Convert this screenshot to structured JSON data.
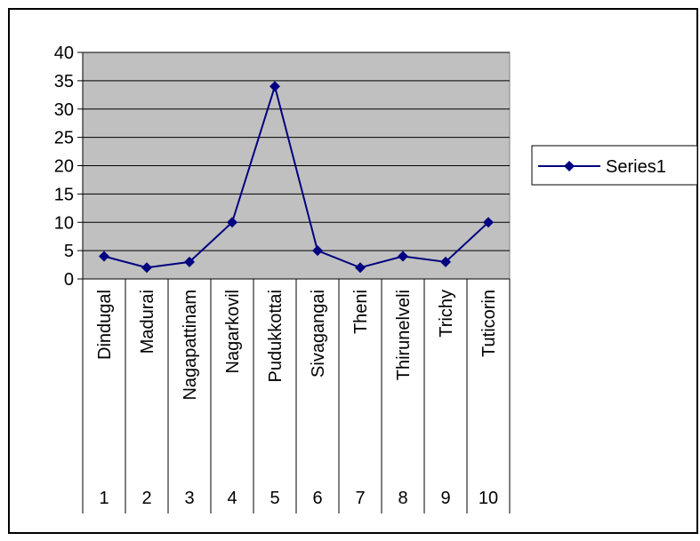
{
  "chart_data": {
    "type": "line",
    "categories": [
      "Dindugal",
      "Madurai",
      "Nagapattinam",
      "Nagarkovil",
      "Pudukkottai",
      "Sivagangai",
      "Theni",
      "Thirunelveli",
      "Trichy",
      "Tuticorin"
    ],
    "category_numbers": [
      "1",
      "2",
      "3",
      "4",
      "5",
      "6",
      "7",
      "8",
      "9",
      "10"
    ],
    "series": [
      {
        "name": "Series1",
        "values": [
          4,
          2,
          3,
          10,
          34,
          5,
          2,
          4,
          3,
          10
        ]
      }
    ],
    "yticks": [
      "0",
      "5",
      "10",
      "15",
      "20",
      "25",
      "30",
      "35",
      "40"
    ],
    "ylim": [
      0,
      40
    ],
    "grid": true,
    "legend": "right",
    "title": "",
    "xlabel": "",
    "ylabel": "",
    "colors": {
      "series": "#000080",
      "plot_bg": "#c0c0c0",
      "grid": "#000000",
      "frame": "#000000"
    }
  }
}
